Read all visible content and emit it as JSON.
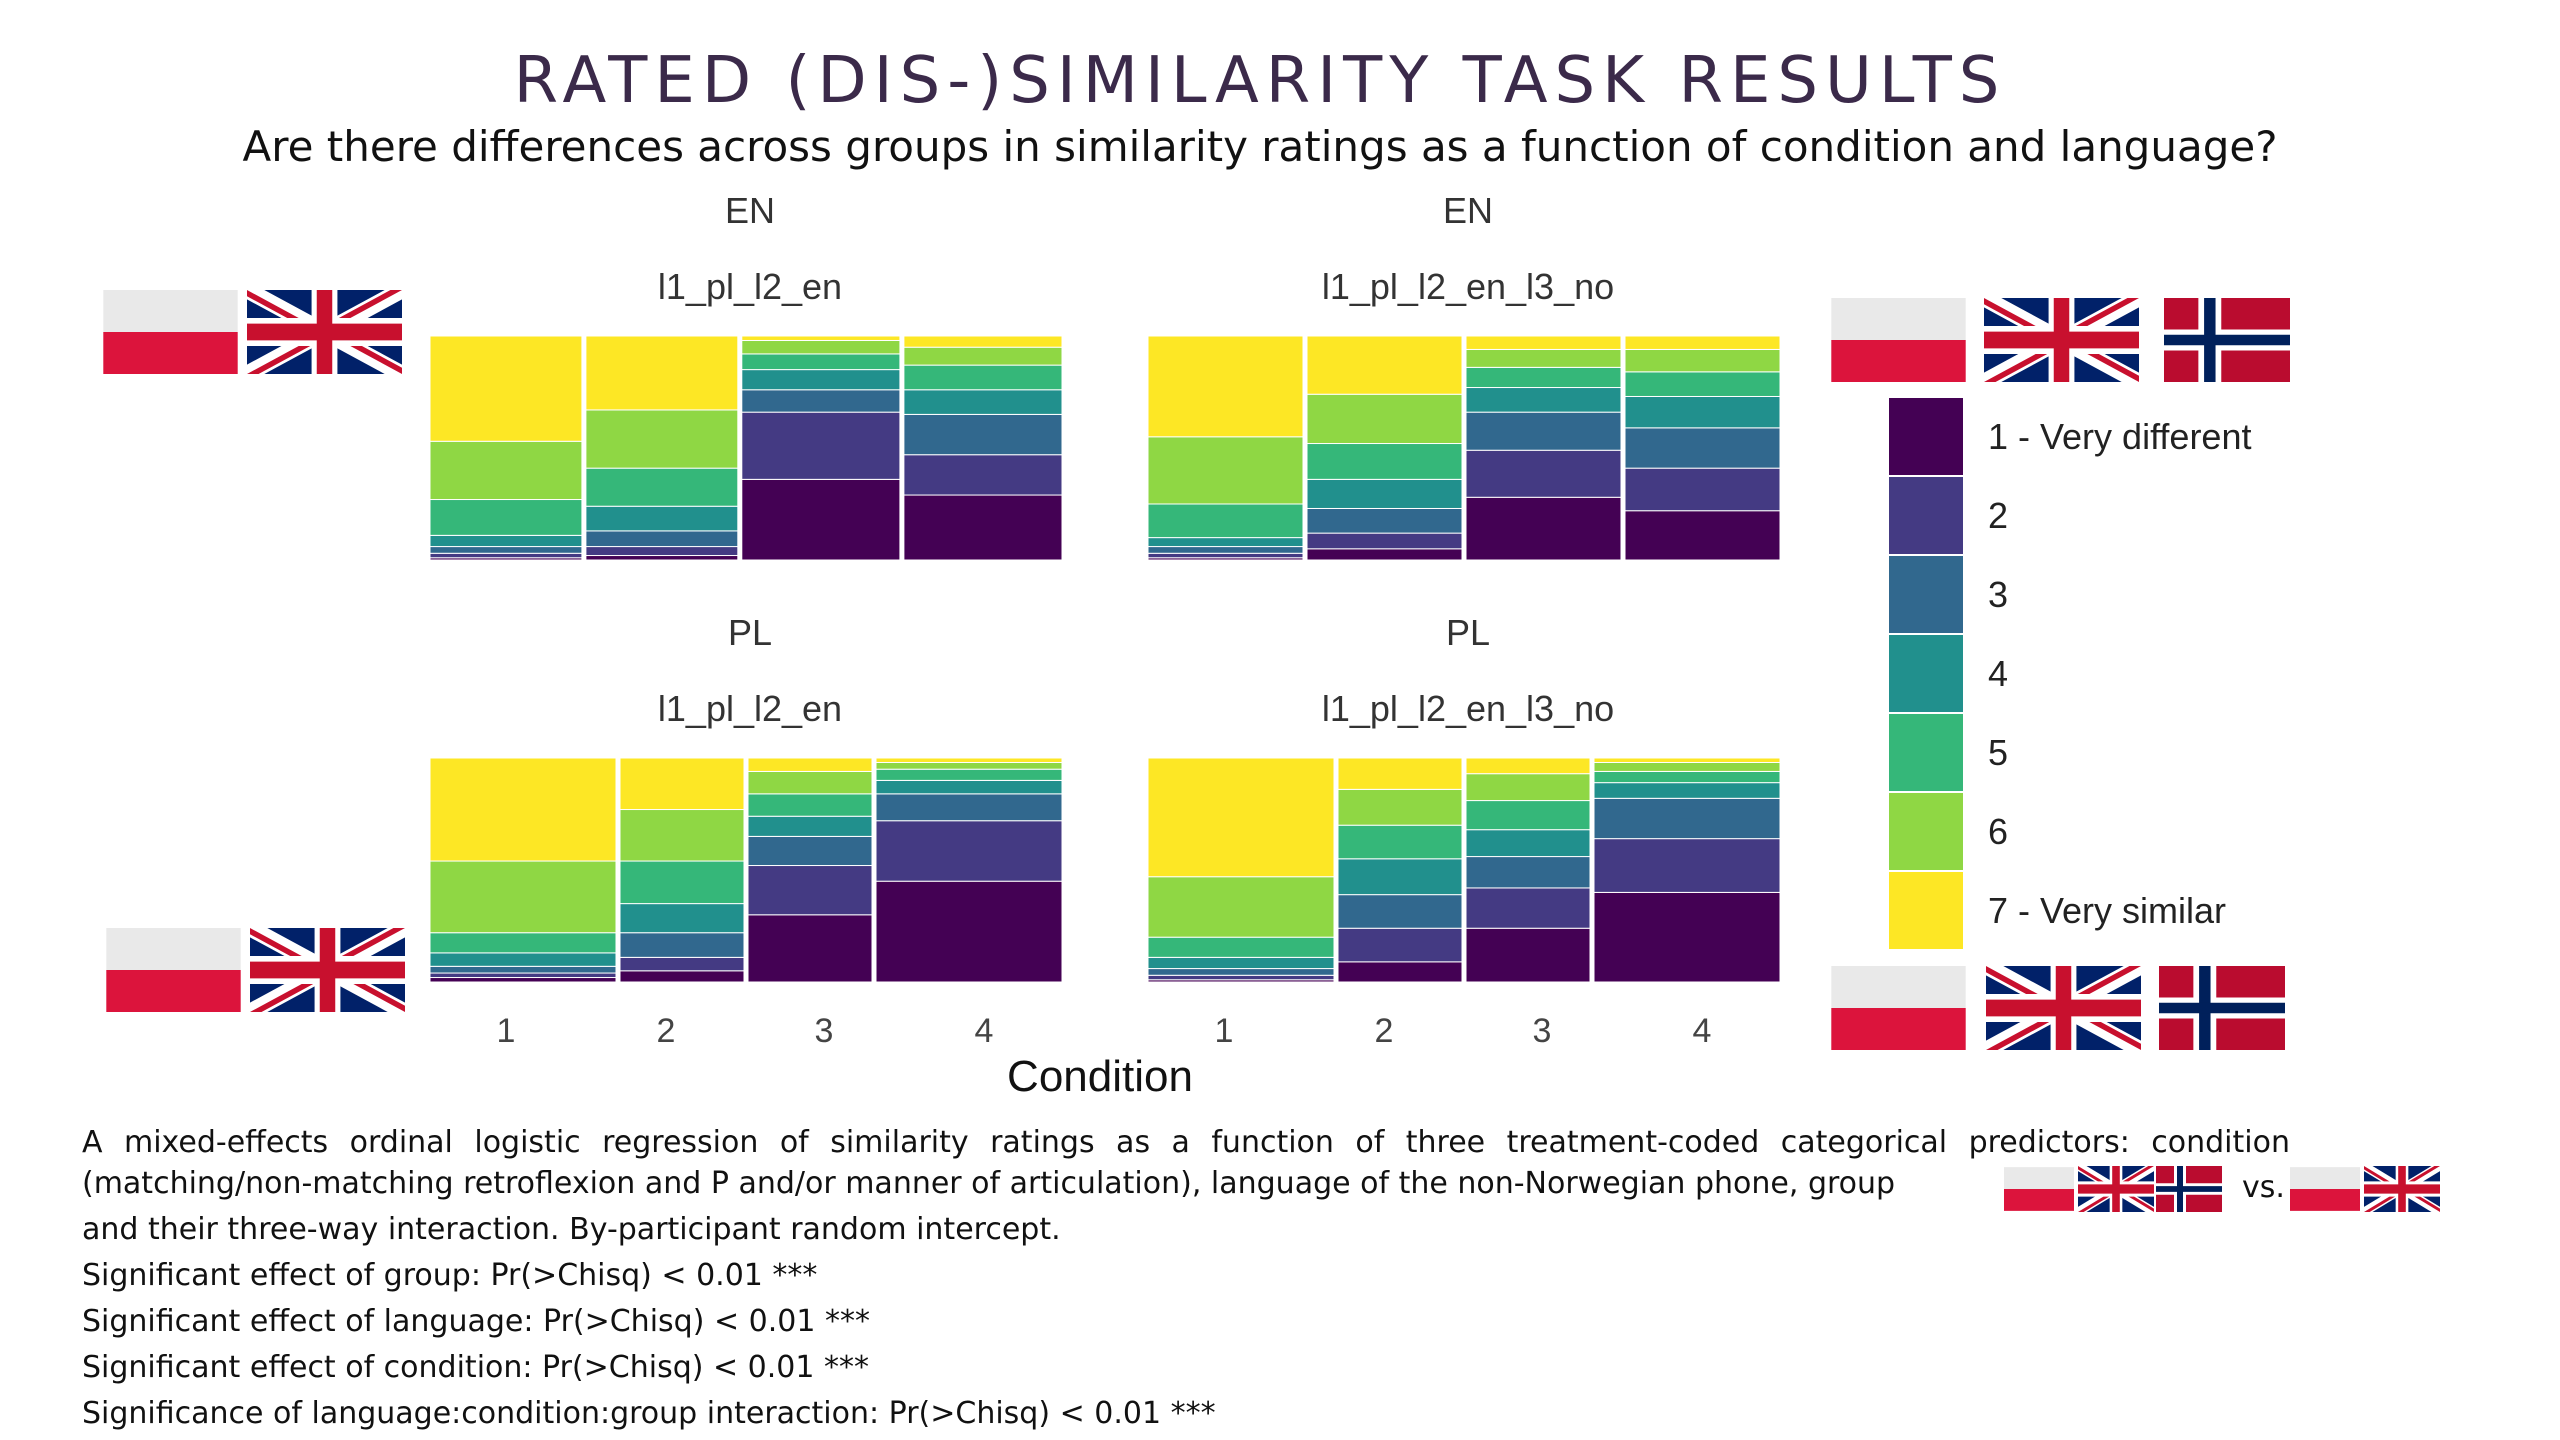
{
  "title": "RATED (DIS-)SIMILARITY TASK RESULTS",
  "subtitle": "Are there differences across groups in similarity ratings as a function of condition and language?",
  "chart_data": {
    "type": "mosaic",
    "xlabel": "Condition",
    "categories": [
      "1",
      "2",
      "3",
      "4"
    ],
    "legend": [
      "1 - Very different",
      "2",
      "3",
      "4",
      "5",
      "6",
      "7 - Very similar"
    ],
    "colors": [
      "#440154",
      "#443a83",
      "#31688e",
      "#21908d",
      "#35b779",
      "#8fd744",
      "#fde725"
    ],
    "panels": [
      {
        "lang": "EN",
        "group": "l1_pl_l2_en",
        "widths": [
          0.245,
          0.245,
          0.255,
          0.255
        ],
        "proportions": [
          [
            0.01,
            0.02,
            0.03,
            0.05,
            0.16,
            0.26,
            0.47
          ],
          [
            0.02,
            0.04,
            0.07,
            0.11,
            0.17,
            0.26,
            0.33
          ],
          [
            0.36,
            0.3,
            0.1,
            0.09,
            0.07,
            0.06,
            0.02
          ],
          [
            0.29,
            0.18,
            0.18,
            0.11,
            0.11,
            0.08,
            0.05
          ]
        ]
      },
      {
        "lang": "EN",
        "group": "l1_pl_l2_en_l3_no",
        "widths": [
          0.25,
          0.25,
          0.25,
          0.25
        ],
        "proportions": [
          [
            0.01,
            0.02,
            0.03,
            0.04,
            0.15,
            0.3,
            0.45
          ],
          [
            0.05,
            0.07,
            0.11,
            0.13,
            0.16,
            0.22,
            0.26
          ],
          [
            0.28,
            0.21,
            0.17,
            0.11,
            0.09,
            0.08,
            0.06
          ],
          [
            0.22,
            0.19,
            0.18,
            0.14,
            0.11,
            0.1,
            0.06
          ]
        ]
      },
      {
        "lang": "PL",
        "group": "l1_pl_l2_en",
        "widths": [
          0.3,
          0.2,
          0.2,
          0.3
        ],
        "proportions": [
          [
            0.02,
            0.02,
            0.03,
            0.06,
            0.09,
            0.32,
            0.46
          ],
          [
            0.05,
            0.06,
            0.11,
            0.13,
            0.19,
            0.23,
            0.23
          ],
          [
            0.3,
            0.22,
            0.13,
            0.09,
            0.1,
            0.1,
            0.06
          ],
          [
            0.45,
            0.27,
            0.12,
            0.06,
            0.05,
            0.03,
            0.02
          ]
        ]
      },
      {
        "lang": "PL",
        "group": "l1_pl_l2_en_l3_no",
        "widths": [
          0.3,
          0.2,
          0.2,
          0.3
        ],
        "proportions": [
          [
            0.01,
            0.02,
            0.03,
            0.05,
            0.09,
            0.27,
            0.53
          ],
          [
            0.09,
            0.15,
            0.15,
            0.16,
            0.15,
            0.16,
            0.14
          ],
          [
            0.24,
            0.18,
            0.14,
            0.12,
            0.13,
            0.12,
            0.07
          ],
          [
            0.4,
            0.24,
            0.18,
            0.07,
            0.05,
            0.04,
            0.02
          ]
        ]
      }
    ]
  },
  "footnote": {
    "paragraph_line1": "A mixed-effects ordinal logistic regression of similarity ratings as a function of three treatment-coded categorical predictors: condition",
    "paragraph_line2": "(matching/non-matching retroflexion and P and/or manner of articulation), language of the non-Norwegian phone, group",
    "vs": "vs.",
    "paragraph_line3": "and their three-way interaction. By-participant random intercept.",
    "effects": [
      "Significant effect of group: Pr(>Chisq) < 0.01 ***",
      "Significant effect of language: Pr(>Chisq) < 0.01 ***",
      "Significant effect of condition: Pr(>Chisq) < 0.01 ***",
      "Significance of language:condition:group interaction: Pr(>Chisq) < 0.01 ***"
    ]
  },
  "flags": [
    "poland-flag",
    "uk-flag",
    "norway-flag"
  ]
}
